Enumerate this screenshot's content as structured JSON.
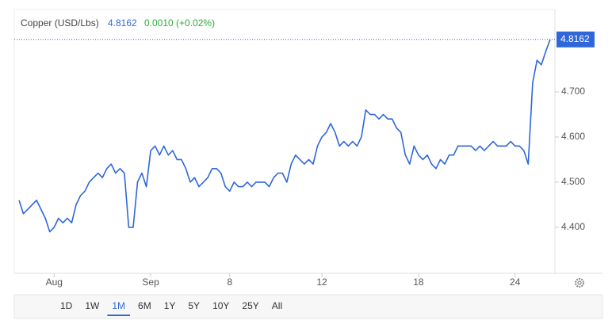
{
  "header": {
    "title": "Copper (USD/Lbs)",
    "change": "0.0010 (+0.02%)"
  },
  "chart_data": {
    "type": "line",
    "series": [
      {
        "name": "Copper (USD/Lbs)",
        "color": "#2f67d8",
        "values": [
          4.46,
          4.43,
          4.44,
          4.45,
          4.46,
          4.44,
          4.42,
          4.39,
          4.4,
          4.42,
          4.41,
          4.42,
          4.41,
          4.45,
          4.47,
          4.48,
          4.5,
          4.51,
          4.52,
          4.51,
          4.53,
          4.54,
          4.52,
          4.53,
          4.52,
          4.4,
          4.4,
          4.5,
          4.52,
          4.49,
          4.57,
          4.58,
          4.56,
          4.58,
          4.56,
          4.57,
          4.55,
          4.55,
          4.53,
          4.5,
          4.51,
          4.49,
          4.5,
          4.51,
          4.53,
          4.53,
          4.52,
          4.49,
          4.48,
          4.5,
          4.49,
          4.49,
          4.5,
          4.49,
          4.5,
          4.5,
          4.5,
          4.49,
          4.51,
          4.52,
          4.52,
          4.5,
          4.54,
          4.56,
          4.55,
          4.54,
          4.55,
          4.54,
          4.58,
          4.6,
          4.61,
          4.63,
          4.61,
          4.58,
          4.59,
          4.58,
          4.59,
          4.58,
          4.6,
          4.66,
          4.65,
          4.65,
          4.64,
          4.65,
          4.64,
          4.64,
          4.62,
          4.61,
          4.56,
          4.54,
          4.58,
          4.56,
          4.55,
          4.56,
          4.54,
          4.53,
          4.55,
          4.54,
          4.56,
          4.56,
          4.58,
          4.58,
          4.58,
          4.58,
          4.57,
          4.58,
          4.57,
          4.58,
          4.59,
          4.58,
          4.58,
          4.58,
          4.59,
          4.58,
          4.58,
          4.57,
          4.54,
          4.72,
          4.77,
          4.76,
          4.79,
          4.8162
        ]
      }
    ],
    "xlim": [
      0,
      121
    ],
    "xticks": [
      {
        "value": 8,
        "label": "Aug"
      },
      {
        "value": 30,
        "label": "Sep"
      },
      {
        "value": 48,
        "label": "8"
      },
      {
        "value": 69,
        "label": "12"
      },
      {
        "value": 91,
        "label": "18"
      },
      {
        "value": 113,
        "label": "24"
      }
    ],
    "ylim": [
      4.298,
      4.8825
    ],
    "yticks": [
      {
        "value": 4.4,
        "label": "4.400"
      },
      {
        "value": 4.5,
        "label": "4.500"
      },
      {
        "value": 4.6,
        "label": "4.600"
      },
      {
        "value": 4.7,
        "label": "4.700"
      }
    ],
    "grid": false,
    "change_color": "#2eaa3c"
  },
  "toolbar": {
    "ranges": [
      "1D",
      "1W",
      "1M",
      "6M",
      "1Y",
      "5Y",
      "10Y",
      "25Y",
      "All"
    ],
    "selected_range": "1M"
  }
}
